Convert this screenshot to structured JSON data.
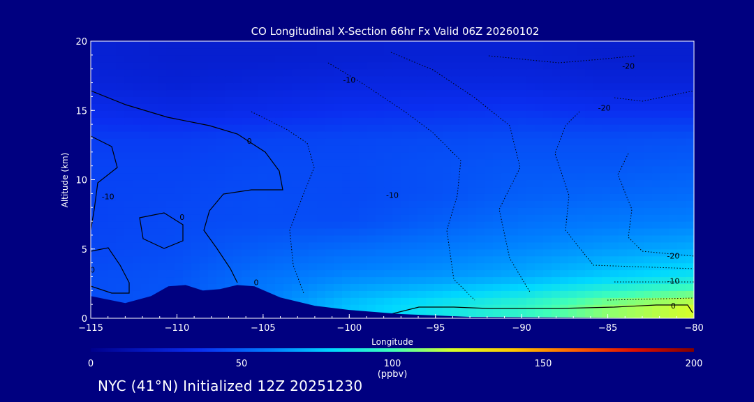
{
  "chart_data": {
    "type": "heatmap",
    "title": "CO Longitudinal X-Section 66hr  Fx Valid 06Z 20260102",
    "xlabel": "Longitude",
    "ylabel": "Altitude (km)",
    "xlim": [
      -115,
      -80
    ],
    "ylim": [
      0,
      20
    ],
    "xticks": [
      "−115",
      "−110",
      "−105",
      "−100",
      "−95",
      "−90",
      "−85",
      "−80"
    ],
    "yticks": [
      "0",
      "5",
      "10",
      "15",
      "20"
    ],
    "x": [
      -115,
      -110,
      -105,
      -100,
      -95,
      -90,
      -85,
      -80
    ],
    "y": [
      1,
      3,
      5,
      7,
      9,
      11,
      13,
      15,
      17,
      19
    ],
    "z": [
      [
        45,
        48,
        60,
        75,
        85,
        95,
        110,
        120
      ],
      [
        45,
        47,
        56,
        62,
        65,
        70,
        78,
        85
      ],
      [
        43,
        45,
        50,
        54,
        58,
        62,
        66,
        70
      ],
      [
        42,
        44,
        45,
        45,
        50,
        55,
        58,
        60
      ],
      [
        42,
        43,
        45,
        44,
        46,
        50,
        52,
        54
      ],
      [
        42,
        42,
        44,
        44,
        46,
        48,
        48,
        50
      ],
      [
        40,
        40,
        42,
        43,
        44,
        45,
        45,
        46
      ],
      [
        34,
        32,
        34,
        36,
        37,
        38,
        36,
        36
      ],
      [
        28,
        26,
        28,
        30,
        30,
        30,
        28,
        28
      ],
      [
        26,
        24,
        24,
        25,
        26,
        26,
        24,
        24
      ]
    ],
    "terrain": [
      [
        -115,
        1.6
      ],
      [
        -113,
        1.1
      ],
      [
        -111.5,
        1.6
      ],
      [
        -110.5,
        2.3
      ],
      [
        -109.5,
        2.4
      ],
      [
        -108.5,
        2.0
      ],
      [
        -107.5,
        2.1
      ],
      [
        -106.5,
        2.4
      ],
      [
        -105.5,
        2.3
      ],
      [
        -104,
        1.5
      ],
      [
        -102,
        0.9
      ],
      [
        -100,
        0.6
      ],
      [
        -97,
        0.3
      ],
      [
        -93,
        0.1
      ],
      [
        -80,
        0.0
      ]
    ],
    "contour_labels": [
      {
        "text": "-20",
        "x": -83.8,
        "y": 18.2
      },
      {
        "text": "-20",
        "x": -85.2,
        "y": 15.2
      },
      {
        "text": "-10",
        "x": -100,
        "y": 17.2
      },
      {
        "text": "0",
        "x": -105.8,
        "y": 12.8
      },
      {
        "text": "-10",
        "x": -97.5,
        "y": 8.9
      },
      {
        "text": "0",
        "x": -109.7,
        "y": 7.3
      },
      {
        "text": "-10",
        "x": -114,
        "y": 8.8
      },
      {
        "text": "-20",
        "x": -81.2,
        "y": 4.5
      },
      {
        "text": "-10",
        "x": -81.2,
        "y": 2.7
      },
      {
        "text": "0",
        "x": -81.2,
        "y": 0.9
      },
      {
        "text": "0",
        "x": -105.4,
        "y": 2.6
      },
      {
        "text": "0",
        "x": -114.9,
        "y": 3.5
      }
    ],
    "colorbar": {
      "range": [
        0,
        200
      ],
      "ticks": [
        "0",
        "50",
        "100",
        "150",
        "200"
      ],
      "label": "(ppbv)"
    }
  },
  "footer": "NYC (41°N) Initialized 12Z 20251230"
}
